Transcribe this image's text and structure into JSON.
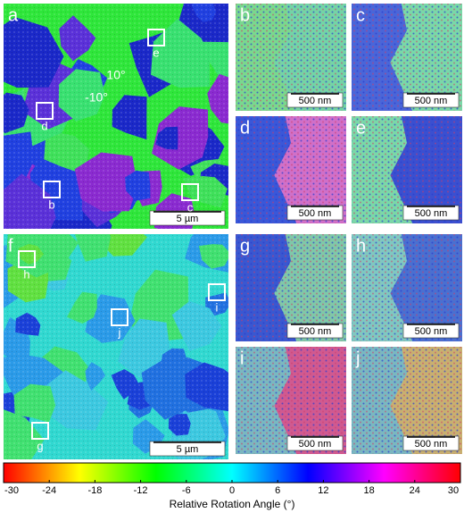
{
  "panels": [
    {
      "label": "a",
      "scale_bar": "5 µm",
      "annotations": [
        "10°",
        "-10°"
      ],
      "boxes": [
        "e",
        "d",
        "b",
        "c"
      ]
    },
    {
      "label": "b",
      "scale_bar": "500 nm"
    },
    {
      "label": "c",
      "scale_bar": "500 nm"
    },
    {
      "label": "d",
      "scale_bar": "500 nm"
    },
    {
      "label": "e",
      "scale_bar": "500 nm"
    },
    {
      "label": "f",
      "scale_bar": "5 µm",
      "boxes": [
        "h",
        "i",
        "j",
        "g"
      ]
    },
    {
      "label": "g",
      "scale_bar": "500 nm"
    },
    {
      "label": "h",
      "scale_bar": "500 nm"
    },
    {
      "label": "i",
      "scale_bar": "500 nm"
    },
    {
      "label": "j",
      "scale_bar": "500 nm"
    }
  ],
  "colorbar": {
    "label": "Relative Rotation Angle (°)",
    "lim": [
      -30,
      30
    ],
    "ticks": [
      -30,
      -24,
      -18,
      -12,
      -6,
      0,
      6,
      12,
      18,
      24,
      30
    ],
    "colors": [
      "#ff0000",
      "#ffff00",
      "#00ff00",
      "#00ffff",
      "#0000ff",
      "#ff00ff",
      "#ff0000"
    ]
  }
}
